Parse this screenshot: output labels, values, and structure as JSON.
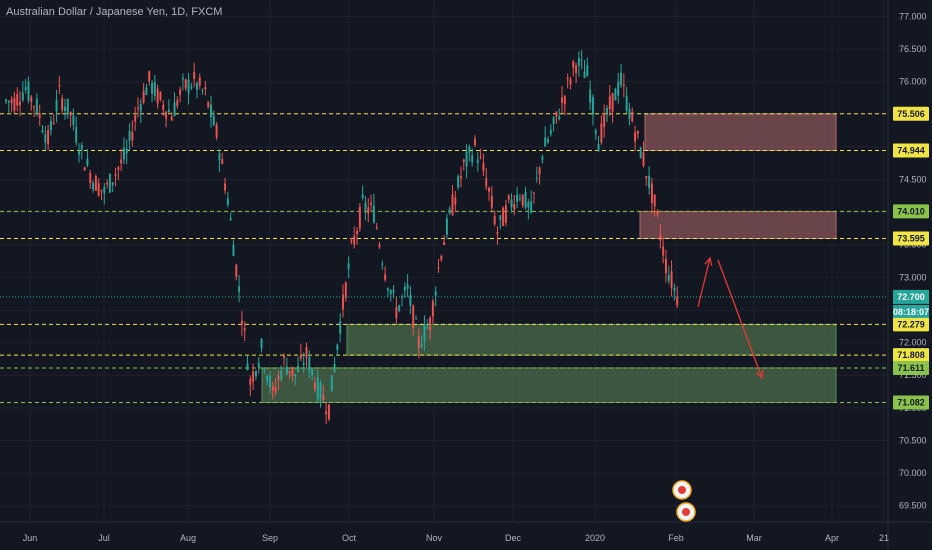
{
  "chart_data": {
    "type": "candlestick",
    "title": "Australian Dollar / Japanese Yen, 1D, FXCM",
    "timeframe": "1D",
    "ylim": [
      69.25,
      77.25
    ],
    "y_ticks": [
      "77.000",
      "76.500",
      "76.000",
      "75.500",
      "75.000",
      "74.500",
      "74.000",
      "73.500",
      "73.000",
      "72.500",
      "72.000",
      "71.500",
      "71.000",
      "70.500",
      "70.000",
      "69.500"
    ],
    "x_ticks": [
      "Jun",
      "Jul",
      "Aug",
      "Sep",
      "Oct",
      "Nov",
      "Dec",
      "2020",
      "Feb",
      "Mar",
      "Apr",
      "21"
    ],
    "price_path": [
      [
        "Jun",
        75.7
      ],
      [
        "Jun",
        75.9
      ],
      [
        "Jun",
        75.6
      ],
      [
        "Jun",
        75.1
      ],
      [
        "Jun",
        75.8
      ],
      [
        "Jun",
        75.5
      ],
      [
        "Jun",
        74.9
      ],
      [
        "Jun",
        74.5
      ],
      [
        "Jun",
        74.3
      ],
      [
        "Jun",
        74.6
      ],
      [
        "Jun",
        74.9
      ],
      [
        "Jul",
        75.6
      ],
      [
        "Jul",
        76.0
      ],
      [
        "Jul",
        75.7
      ],
      [
        "Jul",
        75.5
      ],
      [
        "Jul",
        75.9
      ],
      [
        "Jul",
        76.0
      ],
      [
        "Jul",
        75.8
      ],
      [
        "Jul",
        75.2
      ],
      [
        "Aug",
        74.2
      ],
      [
        "Aug",
        72.8
      ],
      [
        "Aug",
        71.4
      ],
      [
        "Aug",
        71.9
      ],
      [
        "Aug",
        71.2
      ],
      [
        "Aug",
        71.7
      ],
      [
        "Aug",
        71.5
      ],
      [
        "Aug",
        71.8
      ],
      [
        "Aug",
        71.3
      ],
      [
        "Sep",
        71.0
      ],
      [
        "Sep",
        72.3
      ],
      [
        "Sep",
        73.4
      ],
      [
        "Sep",
        74.1
      ],
      [
        "Sep",
        74.0
      ],
      [
        "Sep",
        73.1
      ],
      [
        "Sep",
        72.5
      ],
      [
        "Sep",
        72.8
      ],
      [
        "Oct",
        72.0
      ],
      [
        "Oct",
        72.3
      ],
      [
        "Oct",
        73.4
      ],
      [
        "Oct",
        74.1
      ],
      [
        "Oct",
        74.7
      ],
      [
        "Nov",
        75.0
      ],
      [
        "Nov",
        74.5
      ],
      [
        "Nov",
        73.7
      ],
      [
        "Nov",
        74.1
      ],
      [
        "Nov",
        74.3
      ],
      [
        "Nov",
        74.0
      ],
      [
        "Dec",
        74.9
      ],
      [
        "Dec",
        75.3
      ],
      [
        "Dec",
        75.8
      ],
      [
        "Dec",
        76.3
      ],
      [
        "2020",
        76.1
      ],
      [
        "2020",
        75.1
      ],
      [
        "2020",
        75.6
      ],
      [
        "2020",
        76.0
      ],
      [
        "2020",
        75.4
      ],
      [
        "2020",
        74.8
      ],
      [
        "2020",
        74.1
      ],
      [
        "Feb",
        73.2
      ],
      [
        "Feb",
        72.7
      ]
    ],
    "last_price": 72.7,
    "countdown": "08:18:07",
    "level_badges": [
      {
        "label": "75.506",
        "value": 75.506,
        "color": "#f0e442"
      },
      {
        "label": "74.944",
        "value": 74.944,
        "color": "#f0e442"
      },
      {
        "label": "74.010",
        "value": 74.01,
        "color": "#8bc34a"
      },
      {
        "label": "73.595",
        "value": 73.595,
        "color": "#f0e442"
      },
      {
        "label": "72.279",
        "value": 72.279,
        "color": "#f0e442"
      },
      {
        "label": "71.808",
        "value": 71.808,
        "color": "#f0e442"
      },
      {
        "label": "71.611",
        "value": 71.611,
        "color": "#8bc34a"
      },
      {
        "label": "71.082",
        "value": 71.082,
        "color": "#8bc34a"
      }
    ],
    "zones": [
      {
        "name": "supply-upper",
        "top": 75.506,
        "bottom": 74.944,
        "color": "#b06a6a"
      },
      {
        "name": "supply-lower",
        "top": 74.01,
        "bottom": 73.595,
        "color": "#b06a6a"
      },
      {
        "name": "demand-upper",
        "top": 72.279,
        "bottom": 71.808,
        "color": "#5e8a5a"
      },
      {
        "name": "demand-lower",
        "top": 71.611,
        "bottom": 71.082,
        "color": "#5e8a5a"
      }
    ],
    "colors": {
      "up": "#26a69a",
      "down": "#ef5350",
      "background": "#131722",
      "text": "#b2b5be",
      "grid": "#1e222d",
      "arrow": "#e53935"
    }
  }
}
